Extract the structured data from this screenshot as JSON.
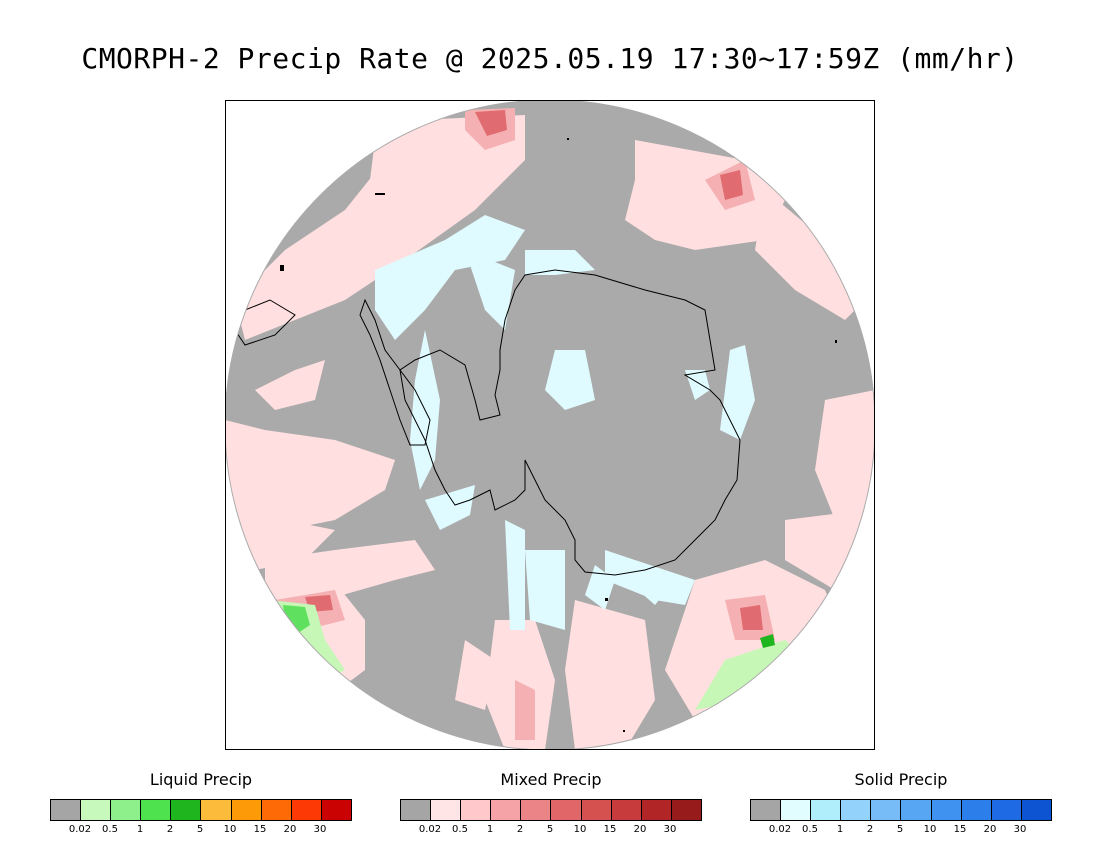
{
  "title": "CMORPH-2 Precip Rate @ 2025.05.19 17:30~17:59Z (mm/hr)",
  "colors": {
    "background": "#aaaaaa",
    "mixed_light": "#ffdfe0",
    "mixed_mid": "#f5b0b3",
    "mixed_dark": "#e06b70",
    "solid_light": "#dffbff",
    "liquid_light": "#c6f7b6",
    "liquid_mid": "#5fe05f",
    "coast": "#000000"
  },
  "legends": [
    {
      "title": "Liquid Precip",
      "colors": [
        "#a5a5a5",
        "#c6f9bb",
        "#8ef08a",
        "#4ee24f",
        "#1fb51f",
        "#fdbb3b",
        "#fd9a08",
        "#fe6a05",
        "#fd3a06",
        "#cb0202"
      ],
      "ticks": [
        "0.02",
        "0.5",
        "1",
        "2",
        "5",
        "10",
        "15",
        "20",
        "30"
      ]
    },
    {
      "title": "Mixed Precip",
      "colors": [
        "#a5a5a5",
        "#ffe5e6",
        "#ffc8cb",
        "#f5a3a6",
        "#eb8487",
        "#e06668",
        "#d5514f",
        "#c83b3c",
        "#b22527",
        "#981b1c"
      ],
      "ticks": [
        "0.02",
        "0.5",
        "1",
        "2",
        "5",
        "10",
        "15",
        "20",
        "30"
      ]
    },
    {
      "title": "Solid Precip",
      "colors": [
        "#a5a5a5",
        "#e1fdff",
        "#b0eefc",
        "#93d3fb",
        "#78bcf7",
        "#57a6f4",
        "#3f92f0",
        "#2c7eea",
        "#1d6ae4",
        "#0d54d2"
      ],
      "ticks": [
        "0.02",
        "0.5",
        "1",
        "2",
        "5",
        "10",
        "15",
        "20",
        "30"
      ]
    }
  ]
}
